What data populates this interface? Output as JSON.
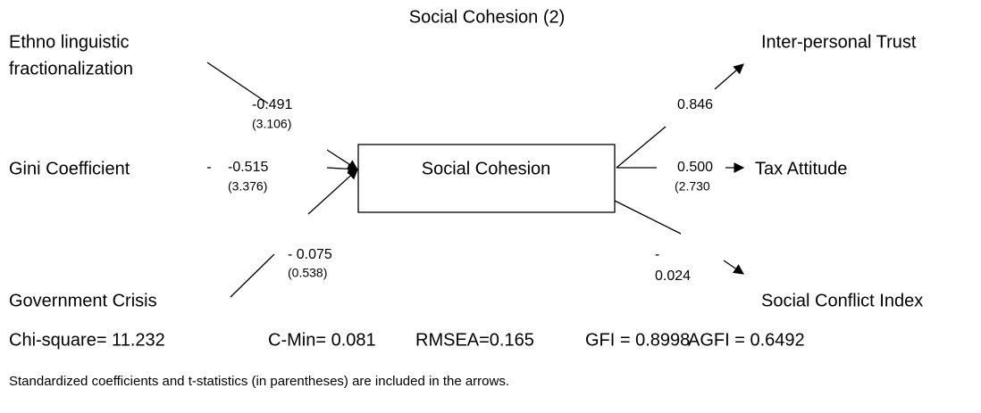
{
  "title": "Social Cohesion (2)",
  "center": "Social Cohesion",
  "inputs": [
    {
      "label_lines": [
        "Ethno linguistic",
        "fractionalization"
      ],
      "coefficient": "-0.491",
      "t_stat": "(3.106)"
    },
    {
      "label_lines": [
        "Gini Coefficient"
      ],
      "coefficient": "-0.515",
      "t_stat": "(3.376)"
    },
    {
      "label_lines": [
        "Government Crisis"
      ],
      "coefficient": "- 0.075",
      "t_stat": "(0.538)"
    }
  ],
  "outputs": [
    {
      "label": "Inter-personal Trust",
      "coefficient_lines": [
        "0.846"
      ]
    },
    {
      "label": "Tax Attitude",
      "coefficient_lines": [
        "0.500",
        "(2.730"
      ]
    },
    {
      "label": "Social Conflict Index",
      "coefficient_lines": [
        "-",
        "0.024"
      ]
    }
  ],
  "statistics": [
    "Chi-square= 11.232",
    "C-Min= 0.081",
    "RMSEA=0.165",
    "GFI = 0.8998",
    "AGFI = 0.6492"
  ],
  "note": "Standardized coefficients and t-statistics (in parentheses) are included in the arrows."
}
